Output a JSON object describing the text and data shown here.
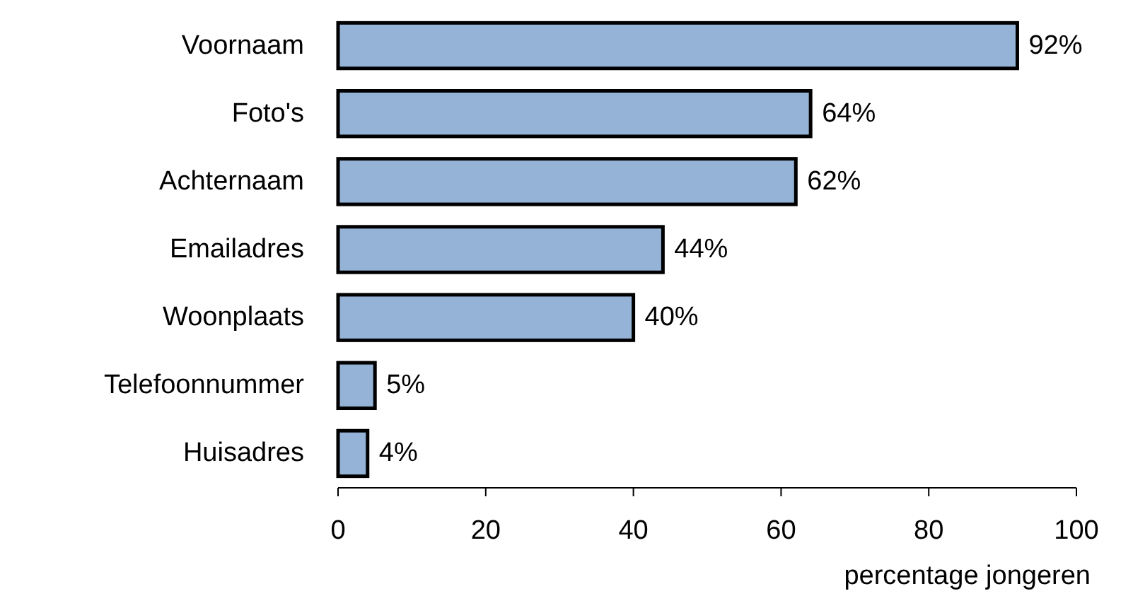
{
  "chart_data": {
    "type": "bar",
    "orientation": "horizontal",
    "categories": [
      "Voornaam",
      "Foto's",
      "Achternaam",
      "Emailadres",
      "Woonplaats",
      "Telefoonnummer",
      "Huisadres"
    ],
    "values": [
      92,
      64,
      62,
      44,
      40,
      5,
      4
    ],
    "value_labels": [
      "92%",
      "64%",
      "62%",
      "44%",
      "40%",
      "5%",
      "4%"
    ],
    "color": "#95b3d7",
    "xlim": [
      0,
      100
    ],
    "xticks": [
      0,
      20,
      40,
      60,
      80,
      100
    ],
    "xlabel": "percentage jongeren"
  }
}
